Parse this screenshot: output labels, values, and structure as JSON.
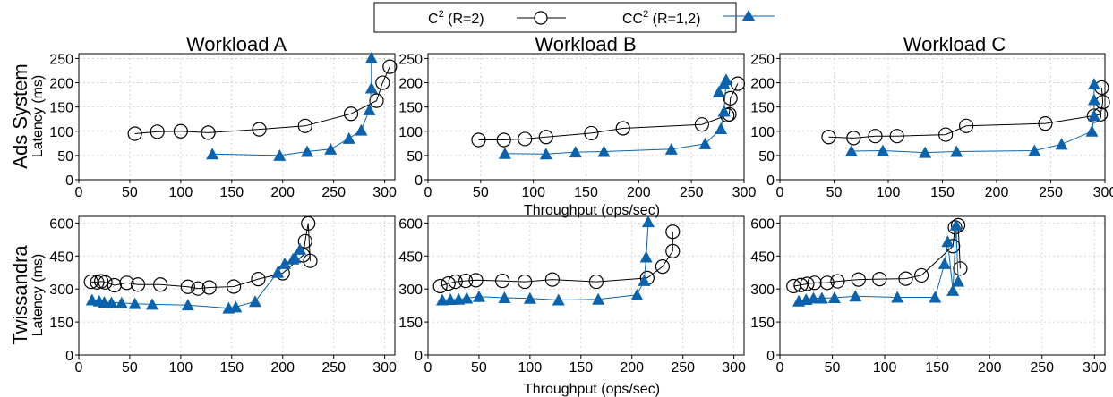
{
  "legend": {
    "items": [
      {
        "label_main": "C",
        "label_sup": "2",
        "label_rest": " (R=2)",
        "marker": "circle",
        "color": "#000000"
      },
      {
        "label_main": "CC",
        "label_sup": "2",
        "label_rest": " (R=1,2)",
        "marker": "triangle",
        "color": "#0b63ad"
      }
    ]
  },
  "colors": {
    "c2": "#000000",
    "cc2": "#0b63ad",
    "grid": "#c8c8c8"
  },
  "columns": [
    {
      "title": "Workload A"
    },
    {
      "title": "Workload B"
    },
    {
      "title": "Workload C"
    }
  ],
  "rows": [
    {
      "label": "Ads System",
      "ylabel": "Latency (ms)",
      "xlabel": "Throughput (ops/sec)",
      "ylim": [
        0,
        260
      ],
      "yticks": [
        0,
        50,
        100,
        150,
        200,
        250
      ]
    },
    {
      "label": "Twissandra",
      "ylabel": "Latency (ms)",
      "xlabel": "Throughput (ops/sec)",
      "ylim": [
        0,
        630
      ],
      "yticks": [
        0,
        150,
        300,
        450,
        600
      ]
    }
  ],
  "chart_data": [
    {
      "type": "line",
      "title": "Workload A",
      "row_label": "Ads System",
      "xlabel": "",
      "ylabel": "Latency (ms)",
      "xlim": [
        0,
        310
      ],
      "xticks": [
        0,
        50,
        100,
        150,
        200,
        250,
        300
      ],
      "ylim": [
        0,
        260
      ],
      "yticks": [
        0,
        50,
        100,
        150,
        200,
        250
      ],
      "grid": true,
      "series": [
        {
          "name": "C2 (R=2)",
          "marker": "circle",
          "x": [
            55,
            77,
            100,
            127,
            177,
            222,
            267,
            292,
            298,
            305
          ],
          "y": [
            95,
            99,
            100,
            97,
            104,
            111,
            136,
            163,
            200,
            233
          ]
        },
        {
          "name": "CC2 (R=1,2)",
          "marker": "triangle",
          "x": [
            131,
            197,
            224,
            247,
            265,
            277,
            285,
            287,
            287
          ],
          "y": [
            53,
            50,
            58,
            63,
            85,
            102,
            144,
            189,
            251
          ]
        }
      ]
    },
    {
      "type": "line",
      "title": "Workload B",
      "row_label": "Ads System",
      "xlabel": "Throughput (ops/sec)",
      "ylabel": "",
      "xlim": [
        0,
        300
      ],
      "xticks": [
        0,
        50,
        100,
        150,
        200,
        250,
        300
      ],
      "ylim": [
        0,
        260
      ],
      "yticks": [
        0,
        50,
        100,
        150,
        200,
        250
      ],
      "grid": true,
      "series": [
        {
          "name": "C2 (R=2)",
          "marker": "circle",
          "x": [
            48,
            72,
            92,
            112,
            155,
            185,
            260,
            284,
            286,
            287,
            294
          ],
          "y": [
            82,
            82,
            84,
            88,
            96,
            106,
            114,
            133,
            135,
            168,
            198
          ]
        },
        {
          "name": "CC2 (R=1,2)",
          "marker": "triangle",
          "x": [
            73,
            112,
            140,
            167,
            231,
            263,
            278,
            281,
            283,
            281,
            276
          ],
          "y": [
            54,
            53,
            57,
            58,
            63,
            74,
            105,
            141,
            206,
            198,
            181
          ]
        }
      ]
    },
    {
      "type": "line",
      "title": "Workload C",
      "row_label": "Ads System",
      "xlabel": "",
      "ylabel": "",
      "xlim": [
        0,
        300
      ],
      "xticks": [
        0,
        50,
        100,
        150,
        200,
        250,
        300
      ],
      "ylim": [
        0,
        260
      ],
      "yticks": [
        0,
        50,
        100,
        150,
        200,
        250
      ],
      "grid": true,
      "series": [
        {
          "name": "C2 (R=2)",
          "marker": "circle",
          "x": [
            45,
            68,
            88,
            108,
            153,
            172,
            245,
            290,
            296,
            298,
            297
          ],
          "y": [
            88,
            86,
            90,
            90,
            93,
            111,
            116,
            132,
            135,
            160,
            190
          ]
        },
        {
          "name": "CC2 (R=1,2)",
          "marker": "triangle",
          "x": [
            66,
            95,
            134,
            163,
            235,
            260,
            288,
            290,
            290,
            290
          ],
          "y": [
            59,
            60,
            56,
            58,
            60,
            73,
            100,
            132,
            165,
            197
          ]
        }
      ]
    },
    {
      "type": "line",
      "title": "Workload A",
      "row_label": "Twissandra",
      "xlabel": "",
      "ylabel": "Latency (ms)",
      "xlim": [
        0,
        310
      ],
      "xticks": [
        0,
        50,
        100,
        150,
        200,
        250,
        300
      ],
      "ylim": [
        0,
        630
      ],
      "yticks": [
        0,
        150,
        300,
        450,
        600
      ],
      "grid": true,
      "series": [
        {
          "name": "C2 (R=2)",
          "marker": "circle",
          "x": [
            12,
            18,
            22,
            26,
            35,
            47,
            58,
            80,
            107,
            117,
            128,
            152,
            176,
            200,
            220,
            222,
            225,
            227
          ],
          "y": [
            333,
            330,
            335,
            330,
            317,
            328,
            320,
            320,
            310,
            302,
            307,
            311,
            345,
            372,
            453,
            517,
            598,
            428
          ]
        },
        {
          "name": "CC2 (R=1,2)",
          "marker": "triangle",
          "x": [
            13,
            20,
            25,
            32,
            42,
            55,
            72,
            107,
            147,
            154,
            173,
            195,
            202,
            210,
            212,
            217
          ],
          "y": [
            250,
            245,
            240,
            238,
            237,
            233,
            230,
            227,
            213,
            218,
            243,
            375,
            415,
            436,
            442,
            480
          ]
        }
      ]
    },
    {
      "type": "line",
      "title": "Workload B",
      "row_label": "Twissandra",
      "xlabel": "Throughput (ops/sec)",
      "ylabel": "",
      "xlim": [
        0,
        310
      ],
      "xticks": [
        0,
        50,
        100,
        150,
        200,
        250,
        300
      ],
      "ylim": [
        0,
        630
      ],
      "yticks": [
        0,
        150,
        300,
        450,
        600
      ],
      "grid": true,
      "series": [
        {
          "name": "C2 (R=2)",
          "marker": "circle",
          "x": [
            12,
            20,
            27,
            37,
            47,
            73,
            95,
            122,
            165,
            215,
            230,
            240,
            240
          ],
          "y": [
            313,
            325,
            333,
            337,
            340,
            337,
            333,
            343,
            333,
            350,
            402,
            472,
            560
          ]
        },
        {
          "name": "CC2 (R=1,2)",
          "marker": "triangle",
          "x": [
            14,
            22,
            30,
            38,
            50,
            75,
            100,
            128,
            167,
            205,
            212,
            214,
            216
          ],
          "y": [
            250,
            252,
            253,
            258,
            265,
            260,
            257,
            250,
            253,
            273,
            338,
            445,
            605
          ]
        }
      ]
    },
    {
      "type": "line",
      "title": "Workload C",
      "row_label": "Twissandra",
      "xlabel": "",
      "ylabel": "",
      "xlim": [
        0,
        310
      ],
      "xticks": [
        0,
        50,
        100,
        150,
        200,
        250,
        300
      ],
      "ylim": [
        0,
        630
      ],
      "yticks": [
        0,
        150,
        300,
        450,
        600
      ],
      "grid": true,
      "series": [
        {
          "name": "C2 (R=2)",
          "marker": "circle",
          "x": [
            13,
            20,
            26,
            33,
            45,
            55,
            75,
            95,
            120,
            135,
            165,
            167,
            170,
            172
          ],
          "y": [
            313,
            318,
            323,
            328,
            328,
            335,
            343,
            345,
            347,
            362,
            495,
            580,
            590,
            393
          ]
        },
        {
          "name": "CC2 (R=1,2)",
          "marker": "triangle",
          "x": [
            18,
            25,
            32,
            40,
            52,
            72,
            112,
            148,
            157,
            160,
            165,
            168,
            170
          ],
          "y": [
            245,
            252,
            258,
            258,
            260,
            267,
            262,
            262,
            415,
            515,
            293,
            590,
            335
          ]
        }
      ]
    }
  ]
}
